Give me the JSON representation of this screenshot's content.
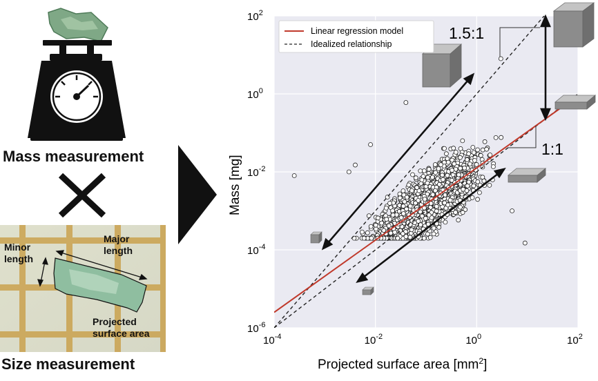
{
  "left_panel": {
    "mass_caption": "Mass measurement",
    "size_caption": "Size measurement",
    "photo_labels": {
      "minor": "Minor\nlength",
      "major": "Major\nlength",
      "area": "Projected\nsurface area"
    }
  },
  "chart_data": {
    "type": "scatter",
    "xlabel": "Projected surface area [mm",
    "xlabel_sup": "2",
    "xlabel_end": "]",
    "ylabel": "Mass [mg]",
    "xscale": "log",
    "yscale": "log",
    "xlim": [
      0.0001,
      100
    ],
    "ylim": [
      1e-06,
      100
    ],
    "xticks": [
      {
        "base": "10",
        "exp": "-4"
      },
      {
        "base": "10",
        "exp": "-2"
      },
      {
        "base": "10",
        "exp": "0"
      },
      {
        "base": "10",
        "exp": "2"
      }
    ],
    "yticks": [
      {
        "base": "10",
        "exp": "-6"
      },
      {
        "base": "10",
        "exp": "-4"
      },
      {
        "base": "10",
        "exp": "-2"
      },
      {
        "base": "10",
        "exp": "0"
      },
      {
        "base": "10",
        "exp": "2"
      }
    ],
    "grid": true,
    "legend_position": "top-left",
    "series": [
      {
        "name": "Linear regression model",
        "kind": "line",
        "color": "#c0392b",
        "points": [
          [
            0.0001,
            2.5e-06
          ],
          [
            100,
            0.9
          ]
        ]
      },
      {
        "name": "Idealized relationship",
        "kind": "dashed",
        "color": "#222222",
        "lines": [
          [
            [
              0.0001,
              1e-06
            ],
            [
              30,
              165
            ]
          ],
          [
            [
              0.0001,
              1e-06
            ],
            [
              100,
              1
            ]
          ]
        ]
      }
    ],
    "ratio_labels": [
      "1.5:1",
      "1:1"
    ],
    "scatter_outliers": [
      [
        0.00025,
        0.008
      ],
      [
        0.003,
        0.01
      ],
      [
        0.008,
        0.05
      ],
      [
        0.04,
        0.6
      ],
      [
        5,
        0.001
      ],
      [
        9,
        0.00015
      ],
      [
        3,
        8
      ],
      [
        0.004,
        0.015
      ]
    ],
    "scatter_note": "a dense cloud of several thousand hollow circle points, following the regression line across approximately x from 0.003 to 10 mm²"
  },
  "colors": {
    "plot_bg": "#eaeaf2",
    "grid": "#ffffff",
    "regression": "#c0392b",
    "cube_front": "#8a8a8a",
    "cube_top": "#b5b5b5",
    "cube_side": "#6c6c6c"
  }
}
